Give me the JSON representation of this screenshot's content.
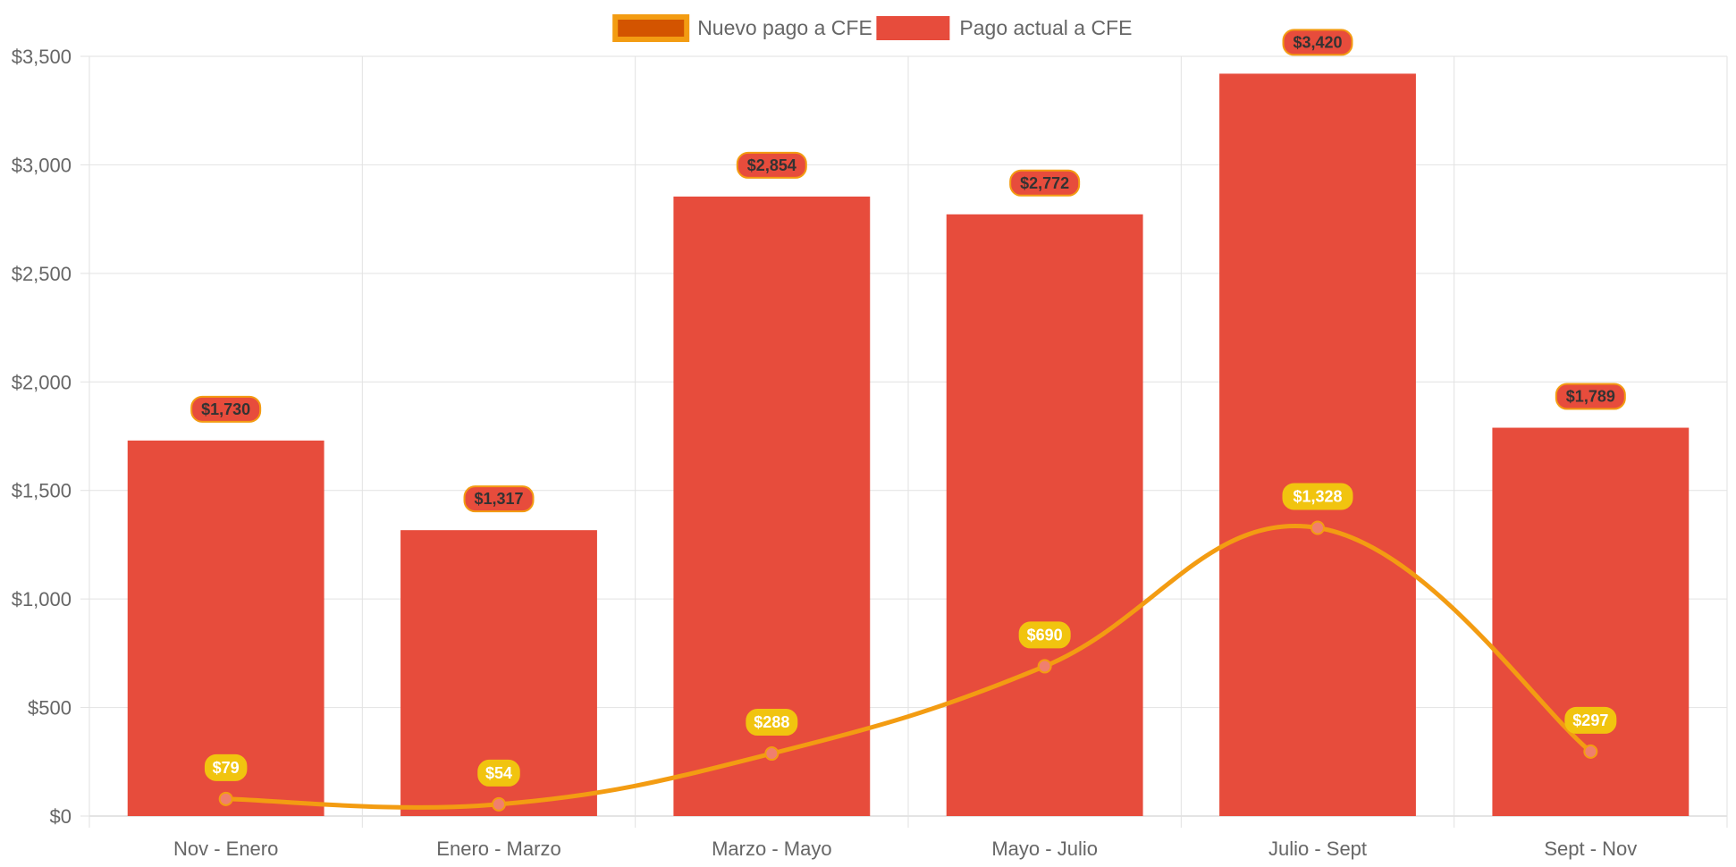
{
  "chart_data": {
    "type": "bar",
    "title": "",
    "xlabel": "",
    "ylabel": "",
    "ylim": [
      0,
      3500
    ],
    "y_ticks": [
      "$0",
      "$500",
      "$1,000",
      "$1,500",
      "$2,000",
      "$2,500",
      "$3,000",
      "$3,500"
    ],
    "grid": true,
    "legend_position": "top-center",
    "categories": [
      "Nov - Enero",
      "Enero - Marzo",
      "Marzo - Mayo",
      "Mayo - Julio",
      "Julio - Sept",
      "Sept - Nov"
    ],
    "series": [
      {
        "name": "Nuevo pago a CFE",
        "type": "line",
        "color": "#F39C12",
        "point_color": "#F07F6E",
        "label_bg": "#F1C40F",
        "values": [
          79,
          54,
          288,
          690,
          1328,
          297
        ],
        "labels": [
          "$79",
          "$54",
          "$288",
          "$690",
          "$1,328",
          "$297"
        ]
      },
      {
        "name": "Pago actual a CFE",
        "type": "bar",
        "color": "#E74C3C",
        "label_bg": "#E74C3C",
        "label_border": "#F39C12",
        "values": [
          1730,
          1317,
          2854,
          2772,
          3420,
          1789
        ],
        "labels": [
          "$1,730",
          "$1,317",
          "$2,854",
          "$2,772",
          "$3,420",
          "$1,789"
        ]
      }
    ],
    "legend": [
      {
        "label": "Nuevo pago a CFE",
        "fill": "#D35400",
        "stroke": "#F39C12"
      },
      {
        "label": "Pago actual a CFE",
        "fill": "#E74C3C",
        "stroke": "#E74C3C"
      }
    ]
  }
}
